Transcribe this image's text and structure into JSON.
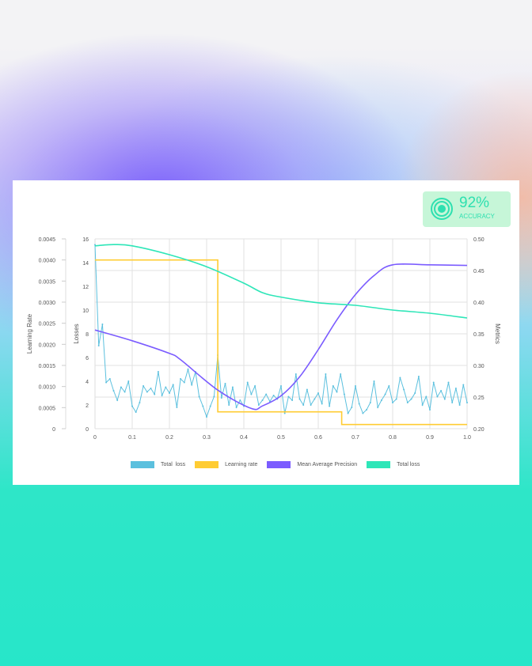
{
  "badge": {
    "value": "92%",
    "label": "ACCURACY",
    "icon": "target-icon"
  },
  "chart_data": {
    "type": "line",
    "x_ticks": [
      "0",
      "0.1",
      "0.2",
      "0.3",
      "0.4",
      "0.5",
      "0.6",
      "0.7",
      "0.8",
      "0.9",
      "1.0"
    ],
    "xlim": [
      0,
      1
    ],
    "axes": {
      "learning_rate": {
        "label": "Learning Rate",
        "ylim": [
          0,
          0.0045
        ],
        "ticks": [
          "0",
          "0.0005",
          "0.0010",
          "0.0015",
          "0.0020",
          "0.0025",
          "0.0030",
          "0.0035",
          "0.0040",
          "0.0045"
        ]
      },
      "losses": {
        "label": "Losses",
        "ylim": [
          0,
          16
        ],
        "ticks": [
          "0",
          "2",
          "4",
          "6",
          "8",
          "10",
          "12",
          "14",
          "16"
        ]
      },
      "metrics": {
        "label": "Metrics",
        "ylim": [
          0.2,
          0.5
        ],
        "ticks": [
          "0.20",
          "0.25",
          "0.30",
          "0.35",
          "0.40",
          "0.45",
          "0.50"
        ]
      }
    },
    "grid": true,
    "legend_placement": "bottom",
    "series": [
      {
        "name": "Total  loss",
        "axis": "losses",
        "color": "#5bc0de",
        "style": "markers",
        "values": [
          15.5,
          7.0,
          8.8,
          3.9,
          4.2,
          3.2,
          2.4,
          3.5,
          3.1,
          4.0,
          1.9,
          1.4,
          2.2,
          3.6,
          3.1,
          3.4,
          2.9,
          4.8,
          2.8,
          3.5,
          3.0,
          3.7,
          1.8,
          4.2,
          3.9,
          5.0,
          3.7,
          4.8,
          2.7,
          1.9,
          1.0,
          1.9,
          2.7,
          6.2,
          2.6,
          3.8,
          2.0,
          3.5,
          1.8,
          2.4,
          1.9,
          3.9,
          2.9,
          3.6,
          2.0,
          2.4,
          2.9,
          2.3,
          2.8,
          2.5,
          3.6,
          1.3,
          2.7,
          2.4,
          4.6,
          2.5,
          2.0,
          3.3,
          2.0,
          2.5,
          3.0,
          2.1,
          4.6,
          1.9,
          3.6,
          3.1,
          4.6,
          2.9,
          1.3,
          1.8,
          3.6,
          2.1,
          1.3,
          1.6,
          2.2,
          4.0,
          1.8,
          2.4,
          2.9,
          3.6,
          2.2,
          2.5,
          4.3,
          3.3,
          2.2,
          2.5,
          3.0,
          4.4,
          2.0,
          2.7,
          1.6,
          3.9,
          2.7,
          3.2,
          2.5,
          3.9,
          2.2,
          3.4,
          2.0,
          3.7,
          2.2
        ]
      },
      {
        "name": "Learning rate",
        "axis": "learning_rate",
        "color": "#ffcc33",
        "style": "step",
        "points": [
          [
            0,
            0.004
          ],
          [
            0.33,
            0.004
          ],
          [
            0.33,
            0.0004
          ],
          [
            0.663,
            0.0004
          ],
          [
            0.663,
            0.0001
          ],
          [
            1.0,
            0.0001
          ]
        ]
      },
      {
        "name": "Mean Average Precision",
        "axis": "metrics",
        "color": "#7b5cff",
        "style": "smooth",
        "points": [
          [
            0,
            0.356
          ],
          [
            0.1,
            0.339
          ],
          [
            0.2,
            0.319
          ],
          [
            0.23,
            0.309
          ],
          [
            0.33,
            0.261
          ],
          [
            0.42,
            0.232
          ],
          [
            0.45,
            0.236
          ],
          [
            0.5,
            0.252
          ],
          [
            0.55,
            0.282
          ],
          [
            0.6,
            0.325
          ],
          [
            0.65,
            0.372
          ],
          [
            0.7,
            0.412
          ],
          [
            0.75,
            0.442
          ],
          [
            0.8,
            0.459
          ],
          [
            0.9,
            0.459
          ],
          [
            1.0,
            0.458
          ]
        ]
      },
      {
        "name": "Total loss",
        "axis": "metrics",
        "color": "#2ee6b8",
        "style": "smooth",
        "points": [
          [
            0,
            0.489
          ],
          [
            0.05,
            0.491
          ],
          [
            0.1,
            0.489
          ],
          [
            0.2,
            0.475
          ],
          [
            0.3,
            0.456
          ],
          [
            0.4,
            0.43
          ],
          [
            0.45,
            0.415
          ],
          [
            0.5,
            0.408
          ],
          [
            0.6,
            0.399
          ],
          [
            0.7,
            0.395
          ],
          [
            0.8,
            0.3875
          ],
          [
            0.9,
            0.3825
          ],
          [
            1.0,
            0.375
          ]
        ]
      }
    ]
  }
}
